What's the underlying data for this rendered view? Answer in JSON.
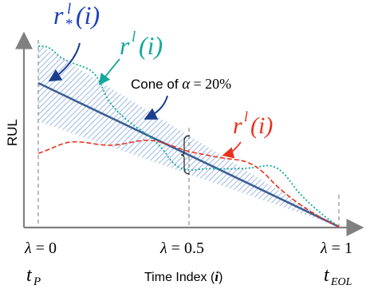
{
  "axes": {
    "y_label": "RUL",
    "x_label_text": "Time Index (",
    "x_label_var": "i",
    "x_label_close": ")"
  },
  "lambda_ticks": [
    {
      "lhs": "λ",
      "eq": " = ",
      "val": "0"
    },
    {
      "lhs": "λ",
      "eq": " = ",
      "val": "0.5"
    },
    {
      "lhs": "λ",
      "eq": " = ",
      "val": "1"
    }
  ],
  "time_marks": {
    "start_base": "t",
    "start_sub": "P",
    "end_base": "t",
    "end_sub": "EOL"
  },
  "cone_label": {
    "prefix": "Cone of ",
    "alpha": "α",
    "suffix": " = 20%"
  },
  "curve_labels": {
    "true_rul": {
      "base": "r",
      "sup": "l",
      "sub": "*",
      "arg": "(i)"
    },
    "pred_green": {
      "base": "r",
      "sup": "l",
      "arg": "(i)"
    },
    "pred_red": {
      "base": "r",
      "sup": "l",
      "arg": "(i)"
    }
  },
  "colors": {
    "true_line": "#3d5f95",
    "cone_hatch": "#8fb0e0",
    "green_curve": "#12a89a",
    "red_curve": "#e8321e",
    "label_blue": "#1c3fbf",
    "arrow_blue": "#1a3d8f",
    "axis": "#808080"
  }
}
